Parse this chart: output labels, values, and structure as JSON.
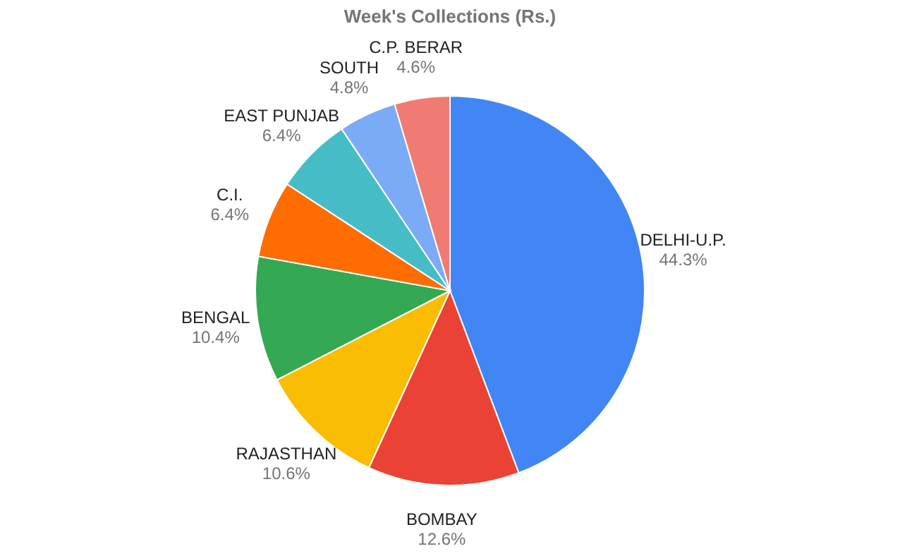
{
  "chart_data": {
    "type": "pie",
    "title": "Week's Collections (Rs.)",
    "categories": [
      "DELHI-U.P.",
      "BOMBAY",
      "RAJASTHAN",
      "BENGAL",
      "C.I.",
      "EAST PUNJAB",
      "SOUTH",
      "C.P. BERAR"
    ],
    "values": [
      44.3,
      12.6,
      10.6,
      10.4,
      6.4,
      6.4,
      4.8,
      4.6
    ],
    "value_labels": [
      "44.3%",
      "12.6%",
      "10.6%",
      "10.4%",
      "6.4%",
      "6.4%",
      "4.8%",
      "4.6%"
    ],
    "colors": [
      "#4285f4",
      "#ea4335",
      "#fbbc04",
      "#34a853",
      "#ff6d01",
      "#46bdc6",
      "#7baaf7",
      "#f07b72"
    ],
    "legend": false
  }
}
